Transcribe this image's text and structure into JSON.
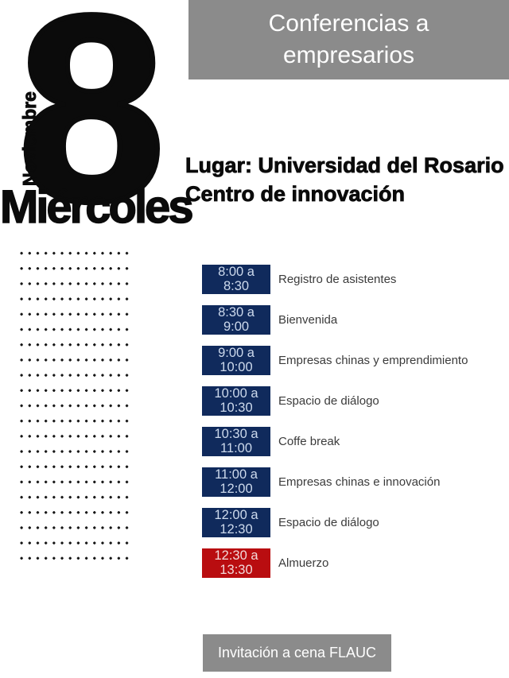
{
  "header": {
    "title": "Conferencias a empresarios"
  },
  "date": {
    "month": "Noviembre",
    "day": "8",
    "weekday": "Miércoles"
  },
  "location": {
    "line1": "Lugar: Universidad del Rosario",
    "line2": "Centro de innovación"
  },
  "schedule": {
    "items": [
      {
        "time_line1": "8:00 a",
        "time_line2": "8:30",
        "label": "Registro de asistentes",
        "highlight": false
      },
      {
        "time_line1": "8:30 a",
        "time_line2": "9:00",
        "label": "Bienvenida",
        "highlight": false
      },
      {
        "time_line1": "9:00 a",
        "time_line2": "10:00",
        "label": "Empresas chinas y emprendimiento",
        "highlight": false
      },
      {
        "time_line1": "10:00 a",
        "time_line2": "10:30",
        "label": "Espacio de diálogo",
        "highlight": false
      },
      {
        "time_line1": "10:30 a",
        "time_line2": "11:00",
        "label": "Coffe break",
        "highlight": false
      },
      {
        "time_line1": "11:00 a",
        "time_line2": "12:00",
        "label": "Empresas chinas e innovación",
        "highlight": false
      },
      {
        "time_line1": "12:00 a",
        "time_line2": "12:30",
        "label": "Espacio de diálogo",
        "highlight": false
      },
      {
        "time_line1": "12:30 a",
        "time_line2": "13:30",
        "label": "Almuerzo",
        "highlight": true
      }
    ]
  },
  "footer": {
    "button_label": "Invitación a cena FLAUC"
  },
  "colors": {
    "navy": "#102a5c",
    "red": "#b90d10",
    "gray": "#8b8b8b",
    "time_text": "#ccd9ec",
    "label_text": "#3b3b3b"
  }
}
